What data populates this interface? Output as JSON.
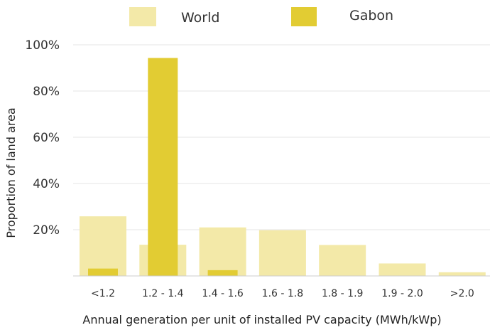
{
  "colors": {
    "world": "#f3e9a8",
    "gabon": "#e2cc33",
    "grid": "#e6e6e6",
    "axis": "#cccccc"
  },
  "chart_data": {
    "type": "bar",
    "title": "",
    "xlabel": "Annual generation per unit of installed PV capacity (MWh/kWp)",
    "ylabel": "Proportion of land area",
    "categories": [
      "<1.2",
      "1.2 - 1.4",
      "1.4 - 1.6",
      "1.6 - 1.8",
      "1.8 - 1.9",
      "1.9 - 2.0",
      ">2.0"
    ],
    "yticks": [
      "20%",
      "40%",
      "60%",
      "80%",
      "100%"
    ],
    "ylim": [
      0,
      100
    ],
    "grid": true,
    "legend_position": "top",
    "series": [
      {
        "name": "World",
        "values": [
          25.8,
          13.5,
          21.0,
          19.8,
          13.4,
          5.4,
          1.6
        ]
      },
      {
        "name": "Gabon",
        "values": [
          3.2,
          94.3,
          2.5,
          0,
          0,
          0,
          0
        ]
      }
    ]
  }
}
